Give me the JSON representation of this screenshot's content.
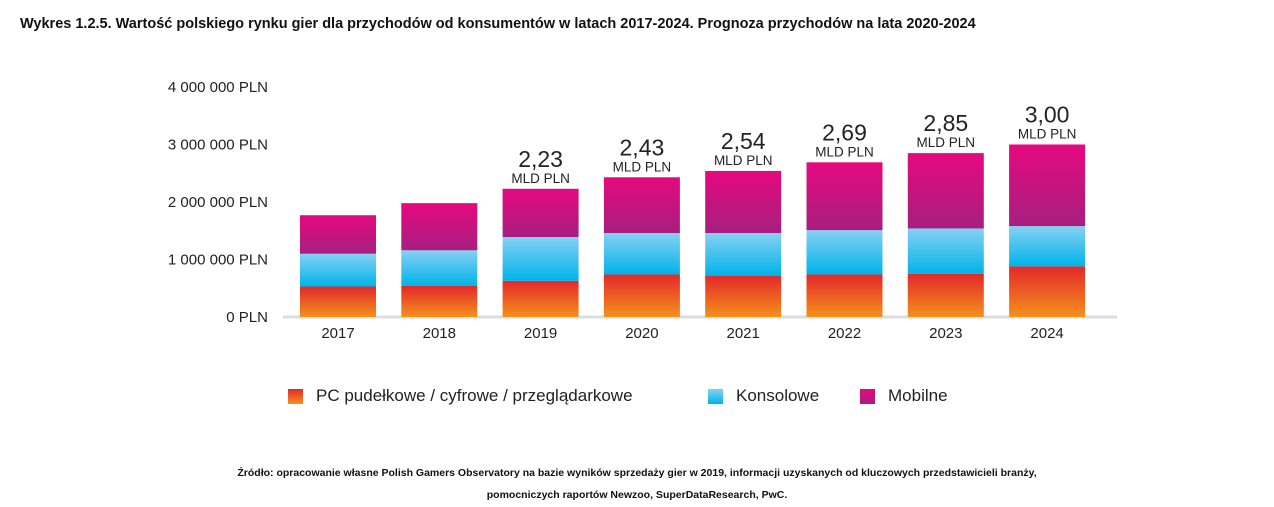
{
  "title": "Wykres 1.2.5. Wartość polskiego rynku gier dla przychodów od konsumentów w latach 2017-2024. Prognoza przychodów na lata 2020-2024",
  "chart_data": {
    "type": "bar",
    "stacked": true,
    "title": "Wykres 1.2.5. Wartość polskiego rynku gier dla przychodów od konsumentów w latach 2017-2024. Prognoza przychodów na lata 2020-2024",
    "xlabel": "",
    "ylabel": "PLN",
    "unit": "million PLN",
    "ylim": [
      0,
      4000000
    ],
    "yticks": [
      0,
      1000000,
      2000000,
      3000000,
      4000000
    ],
    "ytick_labels": [
      "0 PLN",
      "1 000 000 PLN",
      "2 000 000 PLN",
      "3 000 000 PLN",
      "4 000 000 PLN"
    ],
    "categories": [
      "2017",
      "2018",
      "2019",
      "2020",
      "2021",
      "2022",
      "2023",
      "2024"
    ],
    "series": [
      {
        "name": "PC pudełkowe / cyfrowe / przeglądarkowe",
        "color": "#ee6a1f",
        "values": [
          530000,
          540000,
          630000,
          740000,
          720000,
          740000,
          750000,
          880000
        ]
      },
      {
        "name": "Konsolowe",
        "color": "#1bb6ea",
        "values": [
          570000,
          620000,
          760000,
          720000,
          740000,
          770000,
          790000,
          700000
        ]
      },
      {
        "name": "Mobilne",
        "color": "#c2187f",
        "values": [
          670000,
          820000,
          840000,
          970000,
          1080000,
          1180000,
          1310000,
          1420000
        ]
      }
    ],
    "total_labels": [
      null,
      null,
      {
        "value": "2,23",
        "unit": "MLD PLN"
      },
      {
        "value": "2,43",
        "unit": "MLD PLN"
      },
      {
        "value": "2,54",
        "unit": "MLD PLN"
      },
      {
        "value": "2,69",
        "unit": "MLD PLN"
      },
      {
        "value": "2,85",
        "unit": "MLD PLN"
      },
      {
        "value": "3,00",
        "unit": "MLD PLN"
      }
    ],
    "legend_position": "bottom",
    "grid": false
  },
  "source_line1": "Źródło: opracowanie własne Polish Gamers Observatory na bazie wyników sprzedaży gier w 2019, informacji uzyskanych od kluczowych przedstawicieli branży,",
  "source_line2": "pomocniczych raportów Newzoo, SuperDataResearch, PwC."
}
